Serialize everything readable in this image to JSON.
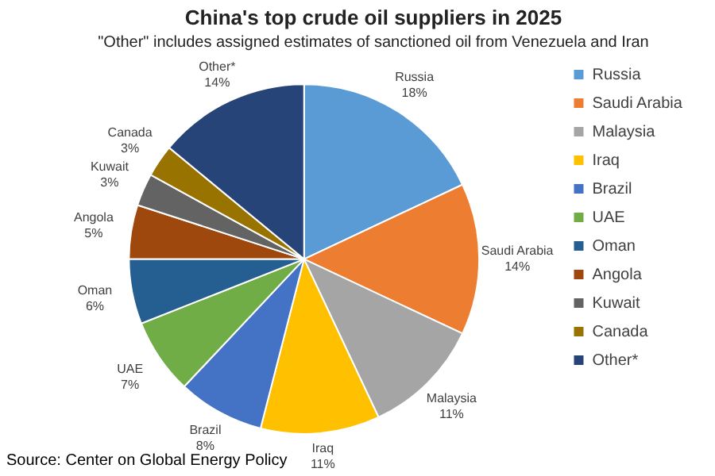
{
  "chart_data": {
    "type": "pie",
    "title": "China's top crude oil suppliers in 2025",
    "subtitle": "\"Other\" includes assigned estimates of sanctioned oil from Venezuela and Iran",
    "categories": [
      "Russia",
      "Saudi Arabia",
      "Malaysia",
      "Iraq",
      "Brazil",
      "UAE",
      "Oman",
      "Angola",
      "Kuwait",
      "Canada",
      "Other*"
    ],
    "values": [
      18,
      14,
      11,
      11,
      8,
      7,
      6,
      5,
      3,
      3,
      14
    ],
    "value_labels": [
      "18%",
      "14%",
      "11%",
      "11%",
      "8%",
      "7%",
      "6%",
      "5%",
      "3%",
      "3%",
      "14%"
    ],
    "colors": [
      "#5b9bd5",
      "#ed7d31",
      "#a5a5a5",
      "#ffc000",
      "#4472c4",
      "#70ad47",
      "#255e91",
      "#9e480e",
      "#636363",
      "#997300",
      "#264478"
    ],
    "legend": "right",
    "annotations": [
      "Source: Center on Global Energy Policy"
    ]
  }
}
